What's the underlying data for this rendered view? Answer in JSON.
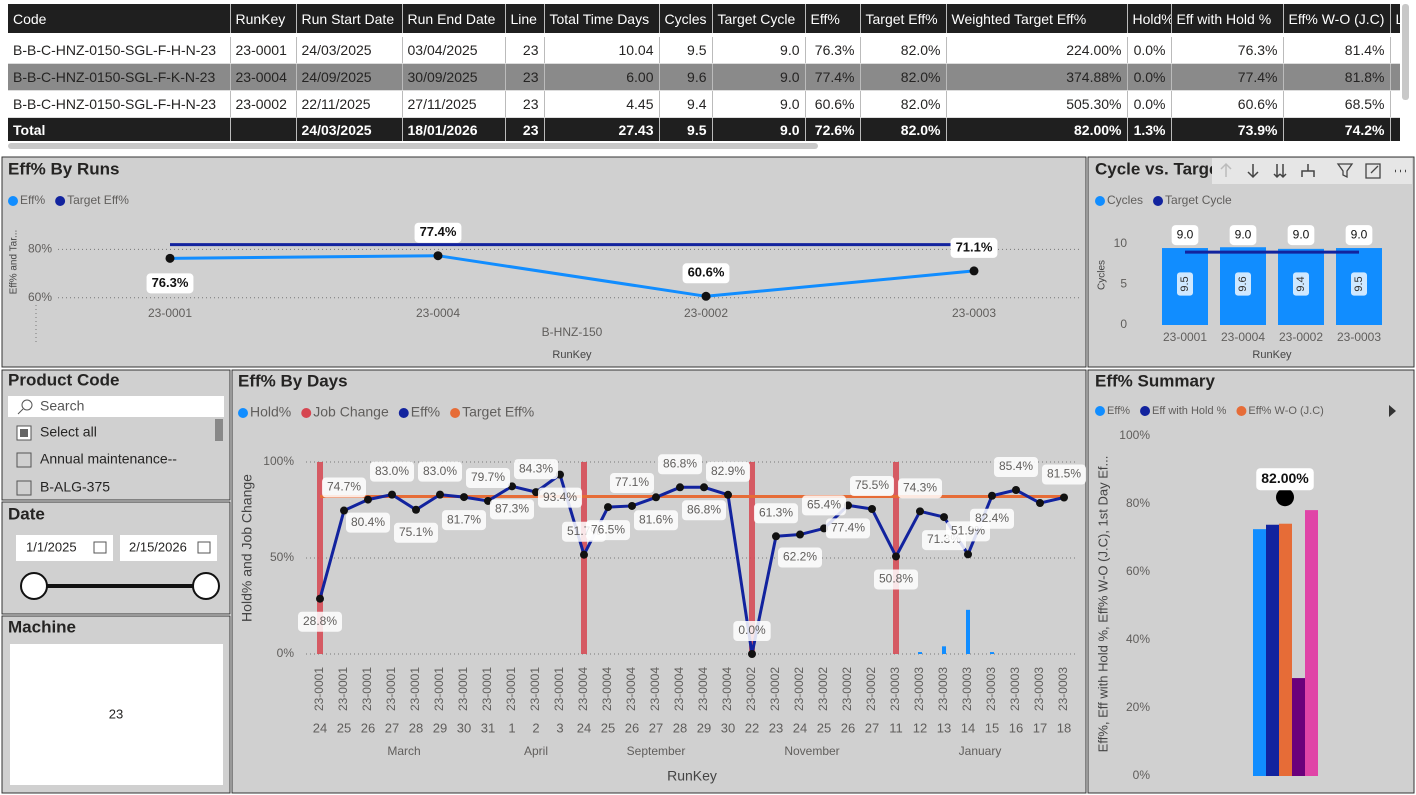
{
  "table": {
    "columns": [
      "Code",
      "RunKey",
      "Run Start Date",
      "Run End Date",
      "Line",
      "Total Time Days",
      "Cycles",
      "Target Cycle",
      "Eff%",
      "Target Eff%",
      "Weighted Target Eff%",
      "Hold%",
      "Eff with Hold %",
      "Eff% W-O (J.C)",
      "Las"
    ],
    "rows": [
      [
        "B-B-C-HNZ-0150-SGL-F-H-N-23",
        "23-0001",
        "24/03/2025",
        "03/04/2025",
        "23",
        "10.04",
        "9.5",
        "9.0",
        "76.3%",
        "82.0%",
        "224.00%",
        "0.0%",
        "76.3%",
        "81.4%"
      ],
      [
        "B-B-C-HNZ-0150-SGL-F-K-N-23",
        "23-0004",
        "24/09/2025",
        "30/09/2025",
        "23",
        "6.00",
        "9.6",
        "9.0",
        "77.4%",
        "82.0%",
        "374.88%",
        "0.0%",
        "77.4%",
        "81.8%"
      ],
      [
        "B-B-C-HNZ-0150-SGL-F-H-N-23",
        "23-0002",
        "22/11/2025",
        "27/11/2025",
        "23",
        "4.45",
        "9.4",
        "9.0",
        "60.6%",
        "82.0%",
        "505.30%",
        "0.0%",
        "60.6%",
        "68.5%"
      ]
    ],
    "total": {
      "label": "Total",
      "cells": [
        "24/03/2025",
        "18/01/2026",
        "23",
        "27.43",
        "9.5",
        "9.0",
        "72.6%",
        "82.0%",
        "82.00%",
        "1.3%",
        "73.9%",
        "74.2%"
      ]
    }
  },
  "slicers": {
    "product_code": {
      "title": "Product Code",
      "search": "Search",
      "items": [
        "Select all",
        "Annual maintenance--",
        "B-ALG-375"
      ]
    },
    "date": {
      "title": "Date",
      "start": "1/1/2025",
      "end": "2/15/2026"
    },
    "machine": {
      "title": "Machine",
      "value": "23"
    }
  },
  "chart_data": [
    {
      "type": "line",
      "title": "Eff% By Runs",
      "categories": [
        "23-0001",
        "23-0004",
        "23-0002",
        "23-0003"
      ],
      "x_group_label": "B-HNZ-150",
      "xlabel": "RunKey",
      "ylabel": "Eff% and Tar...",
      "ylim": [
        57,
        93
      ],
      "yticks": [
        {
          "value": 60,
          "label": "60%"
        },
        {
          "value": 80,
          "label": "80%"
        }
      ],
      "grid": true,
      "series": [
        {
          "name": "Eff%",
          "color": "#118DFF",
          "values": [
            76.3,
            77.4,
            60.6,
            71.1
          ],
          "value_labels": [
            "76.3%",
            "77.4%",
            "60.6%",
            "71.1%"
          ]
        },
        {
          "name": "Target Eff%",
          "color": "#12239E",
          "values": [
            82,
            82,
            82,
            82
          ]
        }
      ]
    },
    {
      "type": "bar",
      "title": "Cycle vs. Targe",
      "categories": [
        "23-0001",
        "23-0004",
        "23-0002",
        "23-0003"
      ],
      "xlabel": "RunKey",
      "ylabel": "Cycles",
      "ylim": [
        0,
        12.5
      ],
      "yticks": [
        0,
        5,
        10
      ],
      "series": [
        {
          "name": "Cycles",
          "color": "#118DFF",
          "values": [
            9.5,
            9.6,
            9.4,
            9.5
          ]
        },
        {
          "name": "Target Cycle",
          "color": "#12239E",
          "type": "line",
          "values": [
            9,
            9,
            9,
            9
          ],
          "value_labels": [
            "9.0",
            "9.0",
            "9.0",
            "9.0"
          ]
        }
      ]
    },
    {
      "type": "combo",
      "title": "Eff% By Days",
      "categories": [
        "24",
        "25",
        "26",
        "27",
        "28",
        "29",
        "30",
        "31",
        "1",
        "2",
        "3",
        "24",
        "25",
        "26",
        "27",
        "28",
        "29",
        "30",
        "22",
        "23",
        "24",
        "25",
        "26",
        "27",
        "11",
        "12",
        "13",
        "14",
        "15",
        "16",
        "17",
        "18"
      ],
      "runkeys": [
        "23-0001",
        "23-0001",
        "23-0001",
        "23-0001",
        "23-0001",
        "23-0001",
        "23-0001",
        "23-0001",
        "23-0001",
        "23-0001",
        "23-0001",
        "23-0004",
        "23-0004",
        "23-0004",
        "23-0004",
        "23-0004",
        "23-0004",
        "23-0004",
        "23-0002",
        "23-0002",
        "23-0002",
        "23-0002",
        "23-0002",
        "23-0002",
        "23-0003",
        "23-0003",
        "23-0003",
        "23-0003",
        "23-0003",
        "23-0003",
        "23-0003",
        "23-0003"
      ],
      "months": [
        "March",
        "March",
        "March",
        "March",
        "March",
        "March",
        "March",
        "March",
        "April",
        "April",
        "April",
        "September",
        "September",
        "September",
        "September",
        "September",
        "September",
        "September",
        "November",
        "November",
        "November",
        "November",
        "November",
        "November",
        "January",
        "January",
        "January",
        "January",
        "January",
        "January",
        "January",
        "January"
      ],
      "xlabel": "RunKey",
      "ylabel": "Hold% and Job Change",
      "ylim": [
        0,
        108
      ],
      "yticks": [
        {
          "value": 0,
          "label": "0%"
        },
        {
          "value": 50,
          "label": "50%"
        },
        {
          "value": 100,
          "label": "100%"
        }
      ],
      "grid": true,
      "series": [
        {
          "name": "Hold%",
          "color": "#118DFF",
          "type": "bar",
          "values": [
            0,
            0,
            0,
            0,
            0,
            0,
            0,
            0,
            0,
            0,
            0,
            0,
            0,
            0,
            0,
            0,
            0,
            0,
            0,
            0,
            0,
            0,
            0,
            0,
            0,
            1,
            4,
            23,
            1,
            0,
            0,
            0
          ]
        },
        {
          "name": "Job Change",
          "color": "#D64550",
          "type": "bar",
          "values": [
            100,
            null,
            null,
            null,
            null,
            null,
            null,
            null,
            null,
            null,
            null,
            100,
            null,
            null,
            null,
            null,
            null,
            null,
            100,
            null,
            null,
            null,
            null,
            null,
            100,
            null,
            null,
            null,
            null,
            null,
            null,
            null
          ]
        },
        {
          "name": "Eff%",
          "color": "#12239E",
          "type": "line",
          "values": [
            28.8,
            74.7,
            80.4,
            83.0,
            75.1,
            83.0,
            81.7,
            79.7,
            87.3,
            84.3,
            93.4,
            51.7,
            76.5,
            77.1,
            81.6,
            86.8,
            86.8,
            82.9,
            0.0,
            61.3,
            62.2,
            65.4,
            77.4,
            75.5,
            50.8,
            74.3,
            71.3,
            51.9,
            82.4,
            85.4,
            78.6,
            81.5
          ],
          "value_labels": [
            "28.8%",
            "74.7%",
            "80.4%",
            "83.0%",
            "75.1%",
            "83.0%",
            "81.7%",
            "79.7%",
            "87.3%",
            "84.3%",
            "93.4%",
            "51.7%",
            "76.5%",
            "77.1%",
            "81.6%",
            "86.8%",
            "86.8%",
            "82.9%",
            "0.0%",
            "61.3%",
            "62.2%",
            "65.4%",
            "77.4%",
            "75.5%",
            "50.8%",
            "74.3%",
            "71.3%",
            "51.9%",
            "82.4%",
            "85.4%",
            null,
            "81.5%"
          ]
        },
        {
          "name": "Target Eff%",
          "color": "#E66C37",
          "type": "line",
          "values": [
            82,
            82,
            82,
            82,
            82,
            82,
            82,
            82,
            82,
            82,
            82,
            82,
            82,
            82,
            82,
            82,
            82,
            82,
            82,
            82,
            82,
            82,
            82,
            82,
            82,
            82,
            82,
            82,
            82,
            82,
            82,
            82
          ]
        }
      ]
    },
    {
      "type": "bar",
      "title": "Eff% Summary",
      "ylabel": "Eff%, Eff with Hold %, Eff% W-O (J.C), 1st Day Ef...",
      "ylim": [
        0,
        105
      ],
      "yticks": [
        {
          "value": 0,
          "label": "0%"
        },
        {
          "value": 20,
          "label": "20%"
        },
        {
          "value": 40,
          "label": "40%"
        },
        {
          "value": 60,
          "label": "60%"
        },
        {
          "value": 80,
          "label": "80%"
        },
        {
          "value": 100,
          "label": "100%"
        }
      ],
      "series": [
        {
          "name": "Eff%",
          "color": "#118DFF",
          "values": [
            72.6
          ]
        },
        {
          "name": "Eff with Hold %",
          "color": "#12239E",
          "values": [
            73.9
          ]
        },
        {
          "name": "Eff% W-O (J.C)",
          "color": "#E66C37",
          "values": [
            74.2
          ]
        },
        {
          "color": "#6B007B",
          "values": [
            28.8
          ]
        },
        {
          "color": "#E044A7",
          "values": [
            78.2
          ]
        }
      ],
      "target": {
        "color": "#000000",
        "values": [
          82
        ],
        "value_labels": [
          "82.00%"
        ]
      }
    }
  ]
}
